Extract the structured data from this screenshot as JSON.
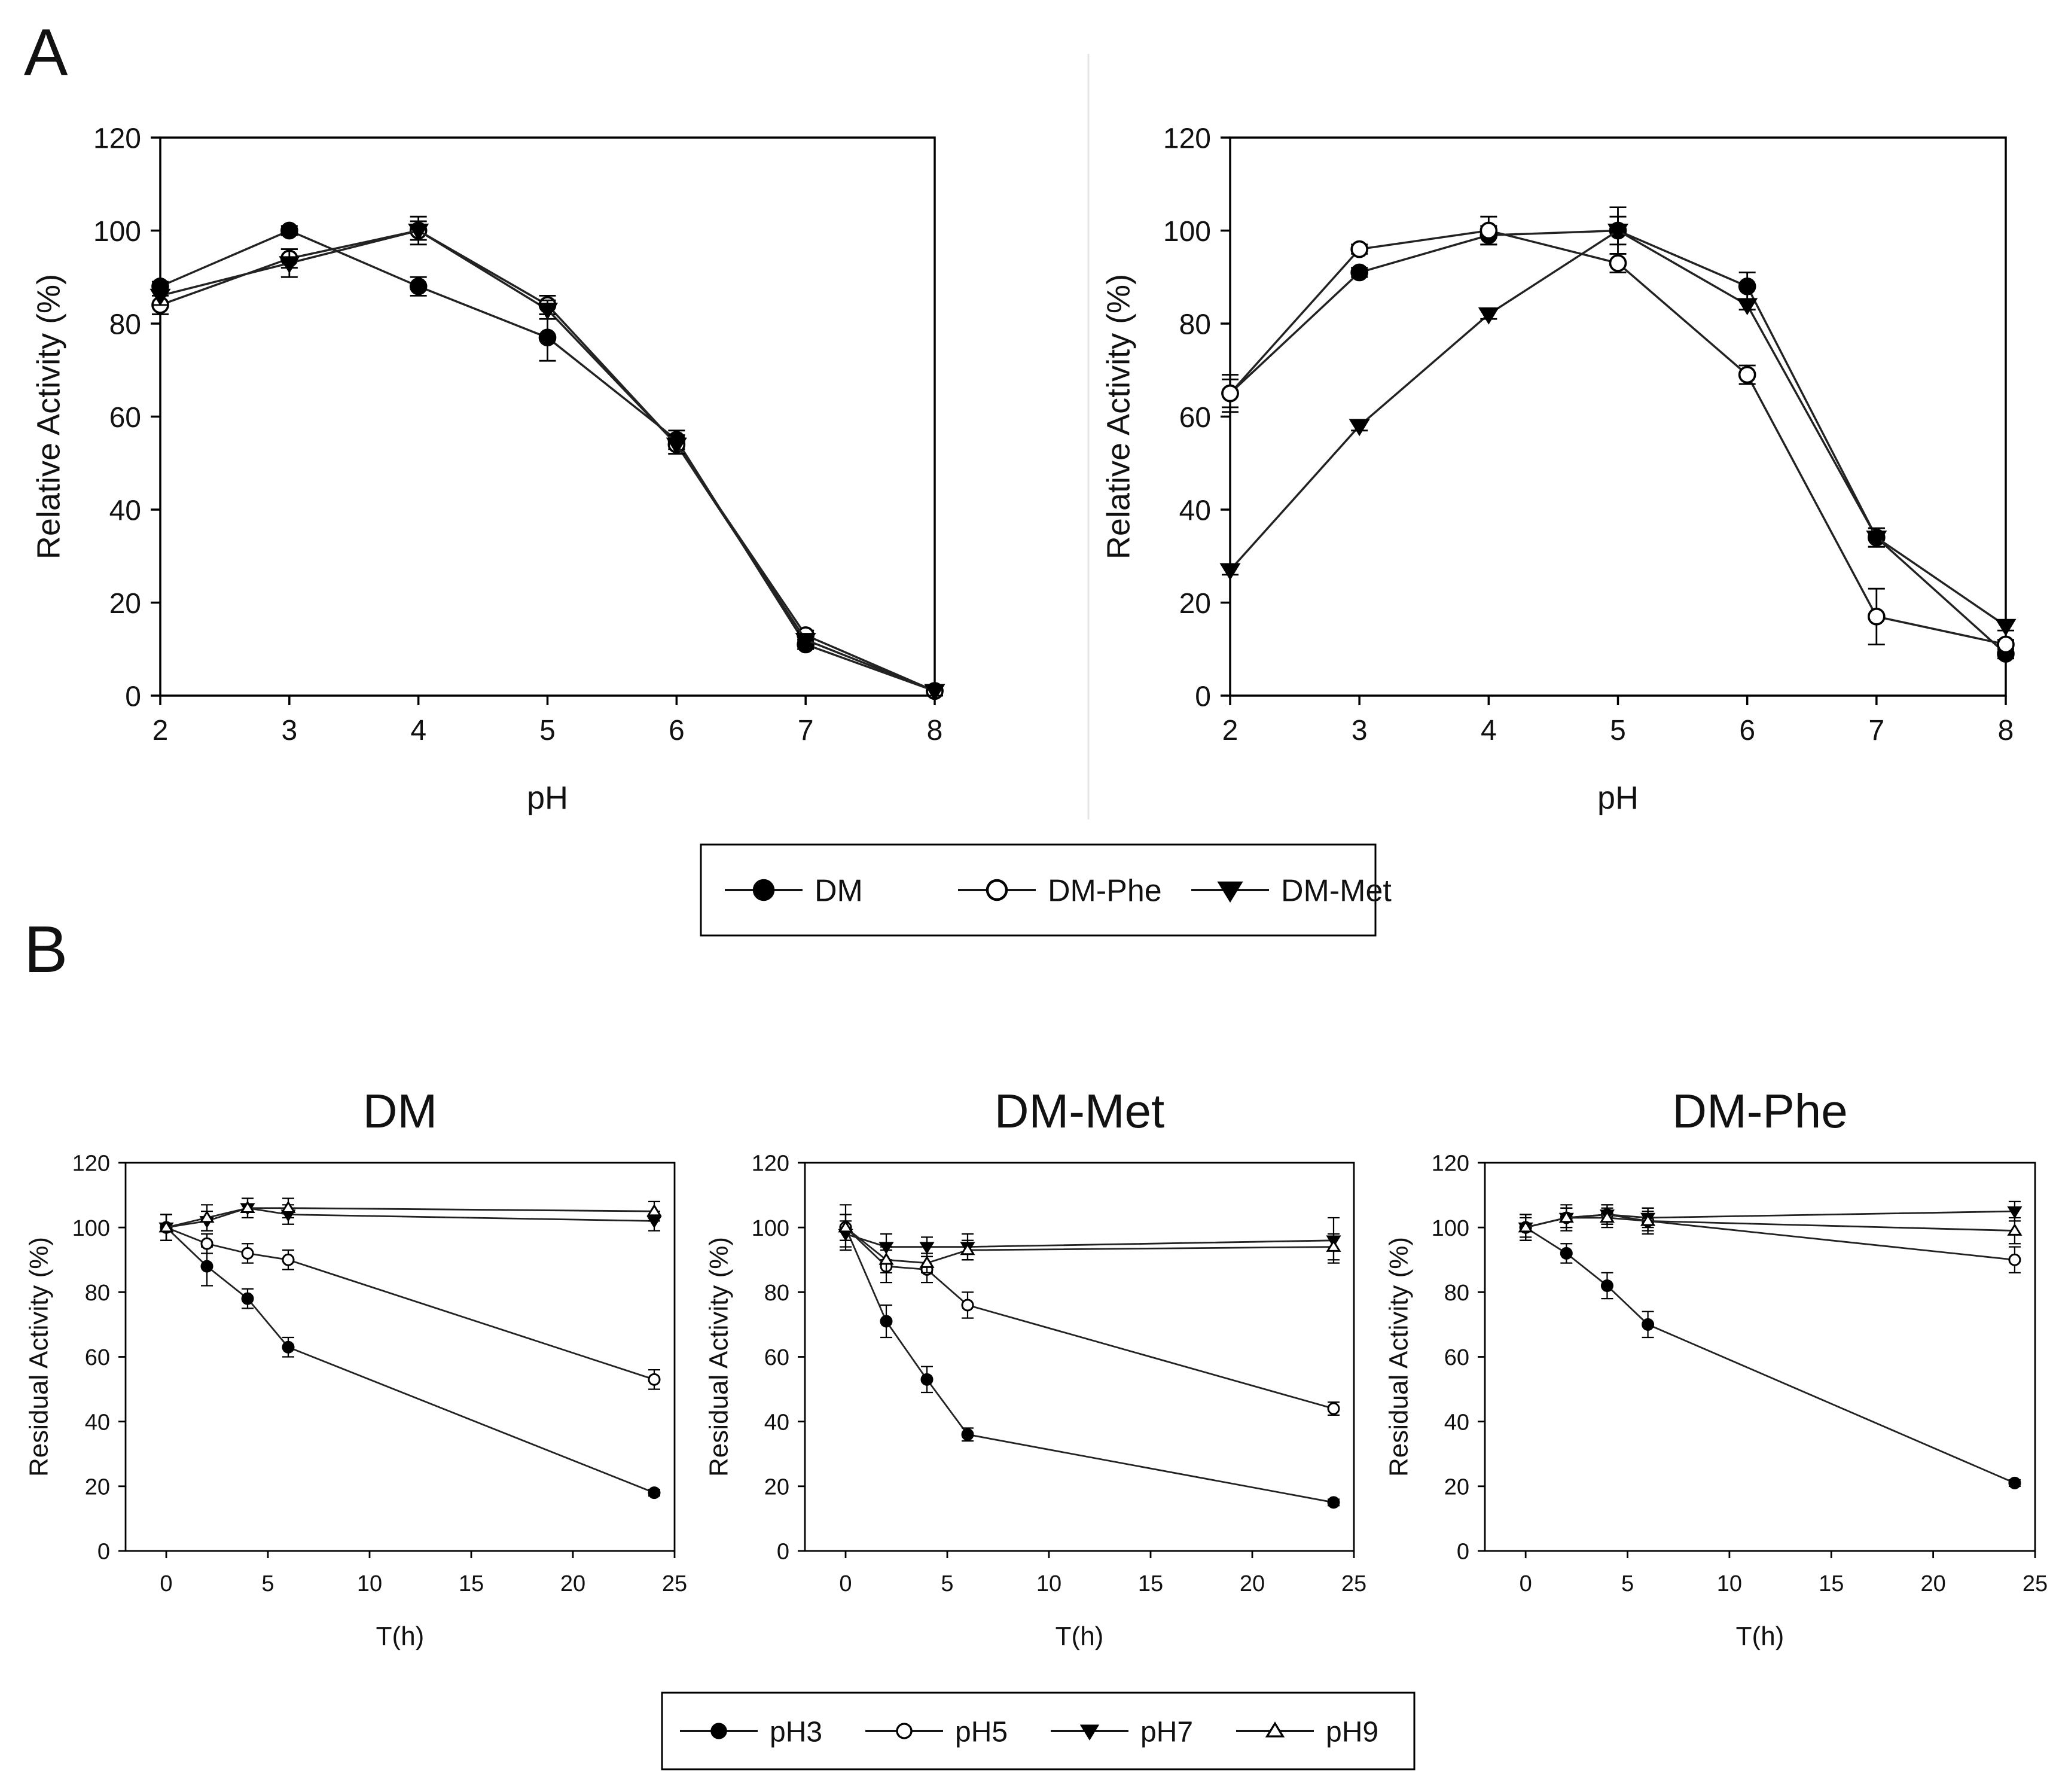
{
  "panel_labels": {
    "a": "A",
    "b": "B"
  },
  "chart_data": [
    {
      "id": "A1",
      "type": "line",
      "panel": "A",
      "title": "",
      "xlabel": "pH",
      "ylabel": "Relative Activity (%)",
      "xlim": [
        2,
        8
      ],
      "ylim": [
        0,
        120
      ],
      "xticks": [
        2,
        3,
        4,
        5,
        6,
        7,
        8
      ],
      "yticks": [
        0,
        20,
        40,
        60,
        80,
        100,
        120
      ],
      "grid": false,
      "series": [
        {
          "name": "DM",
          "marker": "circle-filled",
          "x": [
            2,
            3,
            4,
            5,
            6,
            7,
            8
          ],
          "y": [
            88,
            100,
            88,
            77,
            55,
            11,
            1
          ],
          "err": [
            1,
            1,
            2,
            5,
            2,
            1,
            1
          ]
        },
        {
          "name": "DM-Phe",
          "marker": "circle-open",
          "x": [
            2,
            3,
            4,
            5,
            6,
            7,
            8
          ],
          "y": [
            84,
            94,
            100,
            84,
            54,
            13,
            1
          ],
          "err": [
            2,
            2,
            2,
            2,
            2,
            1,
            1
          ]
        },
        {
          "name": "DM-Met",
          "marker": "triangle-down-filled",
          "x": [
            2,
            3,
            4,
            5,
            6,
            7,
            8
          ],
          "y": [
            86,
            93,
            100,
            83,
            54,
            12,
            1
          ],
          "err": [
            2,
            3,
            3,
            2,
            2,
            1,
            1
          ]
        }
      ]
    },
    {
      "id": "A2",
      "type": "line",
      "panel": "A",
      "title": "",
      "xlabel": "pH",
      "ylabel": "Relative Activity (%)",
      "xlim": [
        2,
        8
      ],
      "ylim": [
        0,
        120
      ],
      "xticks": [
        2,
        3,
        4,
        5,
        6,
        7,
        8
      ],
      "yticks": [
        0,
        20,
        40,
        60,
        80,
        100,
        120
      ],
      "grid": false,
      "series": [
        {
          "name": "DM",
          "marker": "circle-filled",
          "x": [
            2,
            3,
            4,
            5,
            6,
            7,
            8
          ],
          "y": [
            65,
            91,
            99,
            100,
            88,
            34,
            9
          ],
          "err": [
            3,
            1,
            2,
            3,
            3,
            2,
            1
          ]
        },
        {
          "name": "DM-Phe",
          "marker": "circle-open",
          "x": [
            2,
            3,
            4,
            5,
            6,
            7,
            8
          ],
          "y": [
            65,
            96,
            100,
            93,
            69,
            17,
            11
          ],
          "err": [
            4,
            1,
            3,
            2,
            2,
            6,
            1
          ]
        },
        {
          "name": "DM-Met",
          "marker": "triangle-down-filled",
          "x": [
            2,
            3,
            4,
            5,
            6,
            7,
            8
          ],
          "y": [
            27,
            58,
            82,
            100,
            84,
            34,
            15
          ],
          "err": [
            1,
            1,
            1,
            5,
            1,
            2,
            1
          ]
        }
      ]
    },
    {
      "id": "B1",
      "type": "line",
      "panel": "B",
      "title": "DM",
      "xlabel": "T(h)",
      "ylabel": "Residual Activity (%)",
      "xlim": [
        -2,
        25
      ],
      "ylim": [
        0,
        120
      ],
      "xticks": [
        0,
        5,
        10,
        15,
        20,
        25
      ],
      "yticks": [
        0,
        20,
        40,
        60,
        80,
        100,
        120
      ],
      "grid": false,
      "series": [
        {
          "name": "pH3",
          "marker": "circle-filled",
          "x": [
            0,
            2,
            4,
            6,
            24
          ],
          "y": [
            100,
            88,
            78,
            63,
            18
          ],
          "err": [
            4,
            6,
            3,
            3,
            1
          ]
        },
        {
          "name": "pH5",
          "marker": "circle-open",
          "x": [
            0,
            2,
            4,
            6,
            24
          ],
          "y": [
            100,
            95,
            92,
            90,
            53
          ],
          "err": [
            4,
            3,
            3,
            3,
            3
          ]
        },
        {
          "name": "pH7",
          "marker": "triangle-down-filled",
          "x": [
            0,
            2,
            4,
            6,
            24
          ],
          "y": [
            100,
            102,
            106,
            104,
            102
          ],
          "err": [
            4,
            3,
            3,
            3,
            3
          ]
        },
        {
          "name": "pH9",
          "marker": "triangle-up-open",
          "x": [
            0,
            2,
            4,
            6,
            24
          ],
          "y": [
            100,
            103,
            106,
            106,
            105
          ],
          "err": [
            4,
            4,
            3,
            3,
            3
          ]
        }
      ]
    },
    {
      "id": "B2",
      "type": "line",
      "panel": "B",
      "title": "DM-Met",
      "xlabel": "T(h)",
      "ylabel": "Residual Activity (%)",
      "xlim": [
        -2,
        25
      ],
      "ylim": [
        0,
        120
      ],
      "xticks": [
        0,
        5,
        10,
        15,
        20,
        25
      ],
      "yticks": [
        0,
        20,
        40,
        60,
        80,
        100,
        120
      ],
      "grid": false,
      "series": [
        {
          "name": "pH3",
          "marker": "circle-filled",
          "x": [
            0,
            2,
            4,
            6,
            24
          ],
          "y": [
            100,
            71,
            53,
            36,
            15
          ],
          "err": [
            7,
            5,
            4,
            2,
            1
          ]
        },
        {
          "name": "pH5",
          "marker": "circle-open",
          "x": [
            0,
            2,
            4,
            6,
            24
          ],
          "y": [
            100,
            88,
            87,
            76,
            44
          ],
          "err": [
            4,
            5,
            4,
            4,
            2
          ]
        },
        {
          "name": "pH7",
          "marker": "triangle-down-filled",
          "x": [
            0,
            2,
            4,
            6,
            24
          ],
          "y": [
            98,
            94,
            94,
            94,
            96
          ],
          "err": [
            4,
            4,
            3,
            4,
            7
          ]
        },
        {
          "name": "pH9",
          "marker": "triangle-up-open",
          "x": [
            0,
            2,
            4,
            6,
            24
          ],
          "y": [
            100,
            90,
            89,
            93,
            94
          ],
          "err": [
            4,
            4,
            3,
            3,
            4
          ]
        }
      ]
    },
    {
      "id": "B3",
      "type": "line",
      "panel": "B",
      "title": "DM-Phe",
      "xlabel": "T(h)",
      "ylabel": "Residual Activity (%)",
      "xlim": [
        -2,
        25
      ],
      "ylim": [
        0,
        120
      ],
      "xticks": [
        0,
        5,
        10,
        15,
        20,
        25
      ],
      "yticks": [
        0,
        20,
        40,
        60,
        80,
        100,
        120
      ],
      "grid": false,
      "series": [
        {
          "name": "pH3",
          "marker": "circle-filled",
          "x": [
            0,
            2,
            4,
            6,
            24
          ],
          "y": [
            100,
            92,
            82,
            70,
            21
          ],
          "err": [
            4,
            3,
            4,
            4,
            1
          ]
        },
        {
          "name": "pH5",
          "marker": "circle-open",
          "x": [
            0,
            2,
            4,
            6,
            24
          ],
          "y": [
            100,
            103,
            104,
            102,
            90
          ],
          "err": [
            4,
            3,
            3,
            3,
            4
          ]
        },
        {
          "name": "pH7",
          "marker": "triangle-down-filled",
          "x": [
            0,
            2,
            4,
            6,
            24
          ],
          "y": [
            100,
            103,
            104,
            103,
            105
          ],
          "err": [
            3,
            3,
            3,
            3,
            3
          ]
        },
        {
          "name": "pH9",
          "marker": "triangle-up-open",
          "x": [
            0,
            2,
            4,
            6,
            24
          ],
          "y": [
            100,
            103,
            103,
            102,
            99
          ],
          "err": [
            4,
            4,
            3,
            4,
            4
          ]
        }
      ]
    }
  ],
  "legends": {
    "a": [
      {
        "label": "DM",
        "marker": "circle-filled"
      },
      {
        "label": "DM-Phe",
        "marker": "circle-open"
      },
      {
        "label": "DM-Met",
        "marker": "triangle-down-filled"
      }
    ],
    "b": [
      {
        "label": "pH3",
        "marker": "circle-filled"
      },
      {
        "label": "pH5",
        "marker": "circle-open"
      },
      {
        "label": "pH7",
        "marker": "triangle-down-filled"
      },
      {
        "label": "pH9",
        "marker": "triangle-up-open"
      }
    ]
  }
}
